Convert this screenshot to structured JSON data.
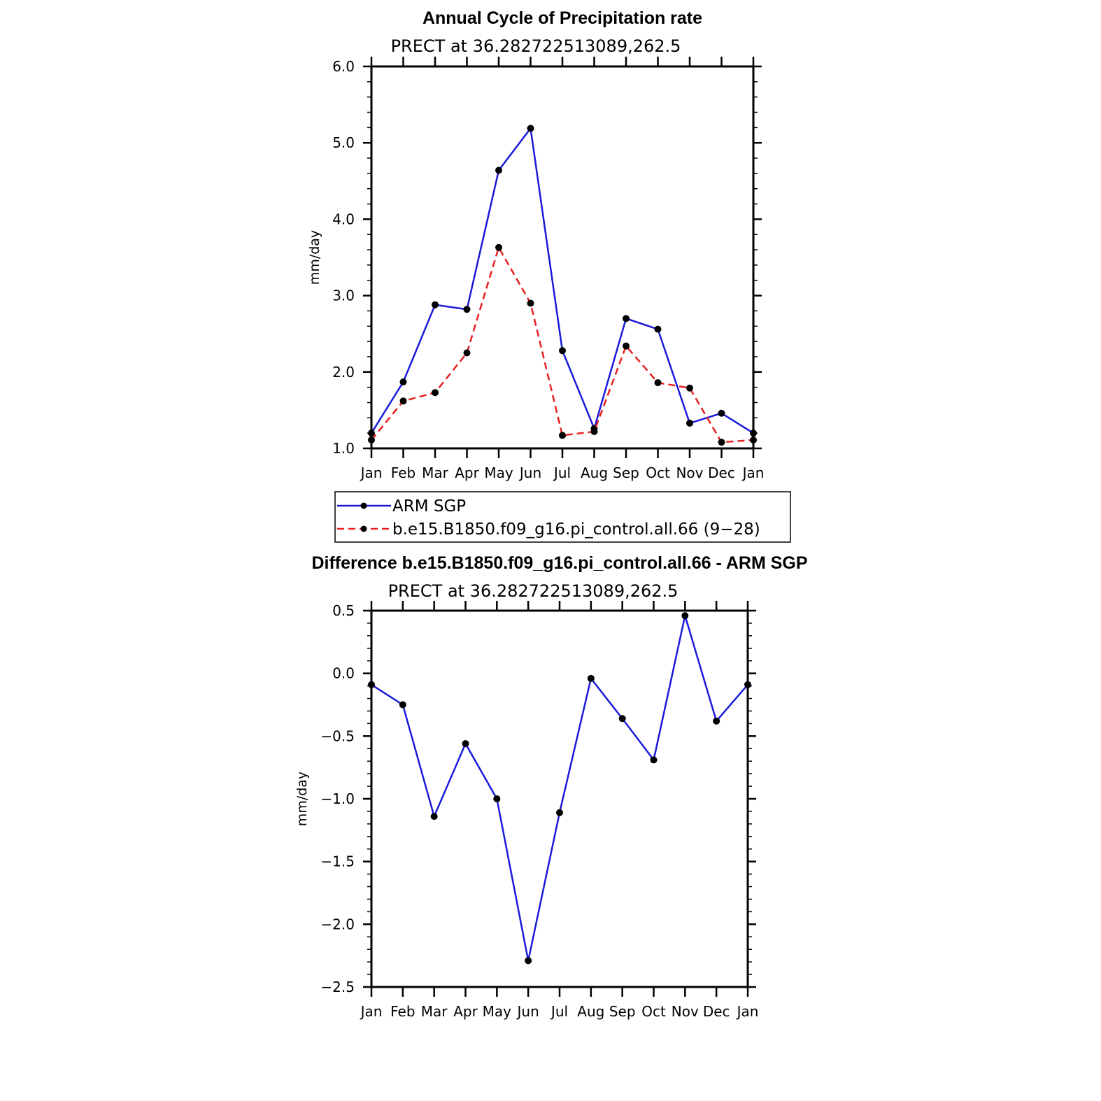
{
  "colors": {
    "obs": "#1a1adb",
    "model": "#e82020",
    "marker": "#000000",
    "axis": "#000000"
  },
  "chart_data": [
    {
      "type": "line",
      "title": "Annual Cycle of Precipitation rate",
      "subtitle": "PRECT at 36.282722513089,262.5",
      "ylabel": "mm/day",
      "ylim": [
        1.0,
        6.0
      ],
      "yticks": [
        "1.0",
        "2.0",
        "3.0",
        "4.0",
        "5.0",
        "6.0"
      ],
      "categories": [
        "Jan",
        "Feb",
        "Mar",
        "Apr",
        "May",
        "Jun",
        "Jul",
        "Aug",
        "Sep",
        "Oct",
        "Nov",
        "Dec",
        "Jan"
      ],
      "series": [
        {
          "name": "ARM SGP",
          "values": [
            1.2,
            1.87,
            2.88,
            2.82,
            4.64,
            5.19,
            2.28,
            1.26,
            2.7,
            2.56,
            1.33,
            1.46,
            1.2
          ]
        },
        {
          "name": "b.e15.B1850.f09_g16.pi_control.all.66 (9−28)",
          "values": [
            1.11,
            1.62,
            1.73,
            2.25,
            3.63,
            2.9,
            1.17,
            1.22,
            2.34,
            1.86,
            1.79,
            1.08,
            1.11
          ]
        }
      ],
      "legend": {
        "placement": "below"
      }
    },
    {
      "type": "line",
      "title": "Difference b.e15.B1850.f09_g16.pi_control.all.66 - ARM SGP",
      "subtitle": "PRECT at 36.282722513089,262.5",
      "ylabel": "mm/day",
      "ylim": [
        -2.5,
        0.5
      ],
      "yticks": [
        "−2.5",
        "−2.0",
        "−1.5",
        "−1.0",
        "−0.5",
        "0.0",
        "0.5"
      ],
      "categories": [
        "Jan",
        "Feb",
        "Mar",
        "Apr",
        "May",
        "Jun",
        "Jul",
        "Aug",
        "Sep",
        "Oct",
        "Nov",
        "Dec",
        "Jan"
      ],
      "series": [
        {
          "values": [
            -0.09,
            -0.25,
            -1.14,
            -0.56,
            -1.0,
            -2.29,
            -1.11,
            -0.04,
            -0.36,
            -0.69,
            0.46,
            -0.38,
            -0.09
          ]
        }
      ]
    }
  ]
}
